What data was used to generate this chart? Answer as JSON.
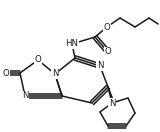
{
  "bg_color": "#ffffff",
  "line_color": "#1a1a1a",
  "line_width": 1.1,
  "font_size": 6.2,
  "figsize": [
    1.6,
    1.32
  ],
  "dpi": 100,
  "xlim": [
    0,
    160
  ],
  "ylim": [
    0,
    132
  ]
}
